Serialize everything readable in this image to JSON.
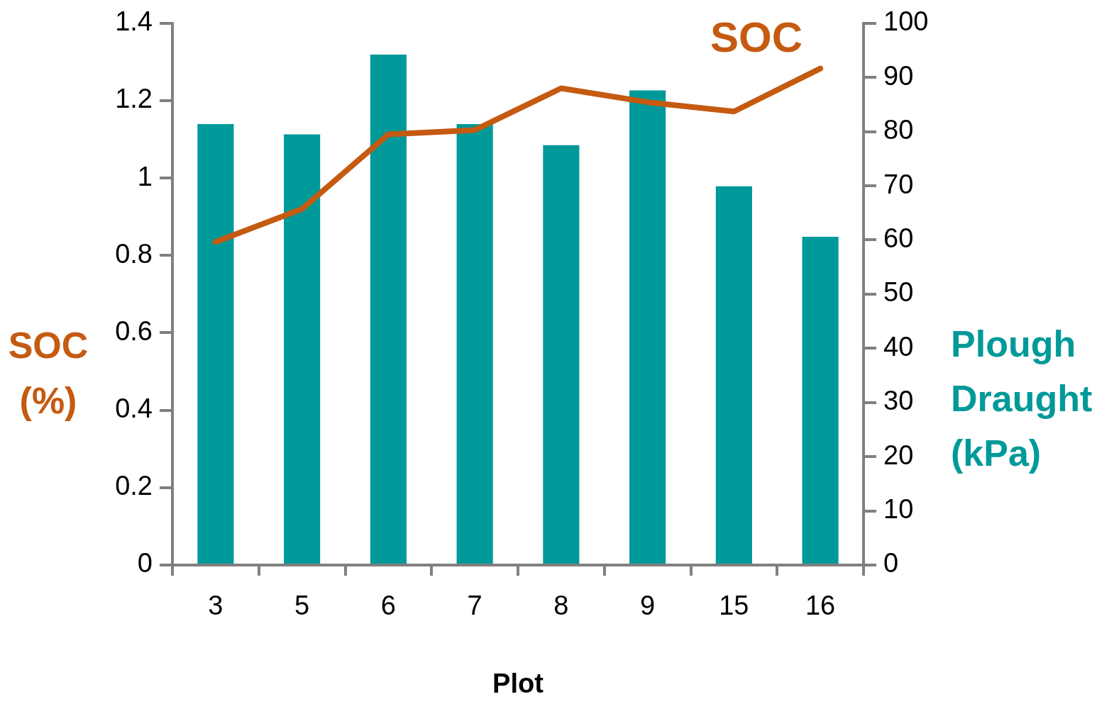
{
  "chart_data": {
    "type": "bar",
    "categories": [
      "3",
      "5",
      "6",
      "7",
      "8",
      "9",
      "15",
      "16"
    ],
    "xlabel": "Plot",
    "ylabel": "SOC (%)",
    "y2label": "Plough Draught (kPa)",
    "series": [
      {
        "axis": "y2",
        "color": "#009999",
        "values": [
          81.4,
          79.5,
          94.2,
          81.4,
          77.5,
          87.6,
          69.9,
          60.6
        ]
      },
      {
        "type": "line",
        "name": "SOC",
        "color": "#c55a11",
        "values": [
          0.835,
          0.92,
          1.113,
          1.124,
          1.232,
          1.196,
          1.172,
          1.283
        ]
      }
    ],
    "ylim": [
      0,
      1.4
    ],
    "yticks": [
      0,
      0.2,
      0.4,
      0.6,
      0.8,
      1,
      1.2,
      1.4
    ],
    "y2lim": [
      0,
      100
    ],
    "y2ticks": [
      0,
      10,
      20,
      30,
      40,
      50,
      60,
      70,
      80,
      90,
      100
    ],
    "legend": false,
    "grid": false,
    "marker": "none",
    "line_style": "solid"
  }
}
